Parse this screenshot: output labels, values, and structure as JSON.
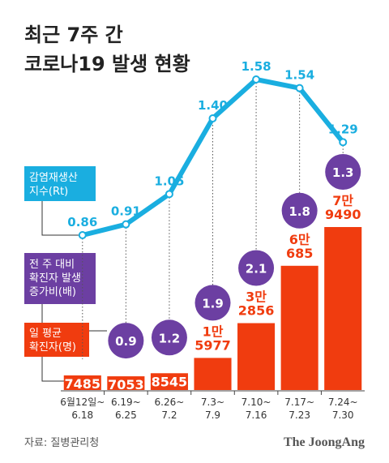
{
  "chart_data": {
    "type": "bar",
    "title": "최근 7주 간\n코로나19 발생 현황",
    "categories": [
      "6월12일~\n6.18",
      "6.19~\n6.25",
      "6.26~\n7.2",
      "7.3~\n7.9",
      "7.10~\n7.16",
      "7.17~\n7.23",
      "7.24~\n7.30"
    ],
    "series": [
      {
        "name": "일 평균\n확진자(명)",
        "color": "#f03c0f",
        "values": [
          7485,
          7053,
          8545,
          15977,
          32856,
          60685,
          79490
        ],
        "value_labels": [
          "7485",
          "7053",
          "8545",
          "1만\n5977",
          "3만\n2856",
          "6만\n685",
          "7만\n9490"
        ]
      },
      {
        "name": "감염재생산\n지수(Rt)",
        "color": "#1aaee0",
        "values": [
          0.86,
          0.91,
          1.05,
          1.4,
          1.58,
          1.54,
          1.29
        ],
        "value_labels": [
          "0.86",
          "0.91",
          "1.05",
          "1.40",
          "1.58",
          "1.54",
          "1.29"
        ]
      },
      {
        "name": "전 주 대비\n확진자 발생\n증가비(배)",
        "color": "#6c3fa2",
        "values": [
          null,
          0.9,
          1.2,
          1.9,
          2.1,
          1.8,
          1.3
        ]
      }
    ],
    "source": "자료: 질병관리청",
    "brand": "The JoongAng"
  }
}
